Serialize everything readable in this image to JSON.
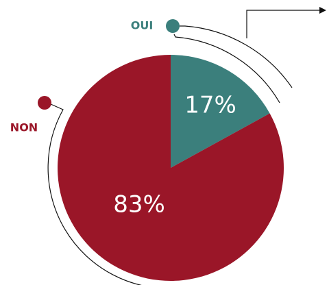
{
  "chart_data": {
    "type": "pie",
    "categories": [
      "OUI",
      "NON"
    ],
    "values": [
      17,
      83
    ],
    "value_labels": [
      "17%",
      "83%"
    ],
    "colors": [
      "#3b7f7c",
      "#9a1628"
    ]
  }
}
